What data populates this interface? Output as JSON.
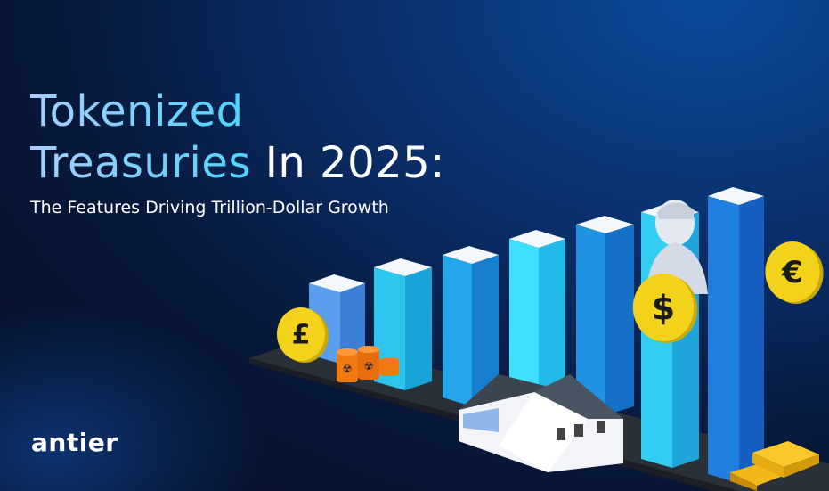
{
  "headline": {
    "line1_highlight": "Tokenized",
    "line2_highlight": "Treasuries",
    "line2_rest": " In 2025:"
  },
  "subtitle": "The Features Driving Trillion-Dollar Growth",
  "brand": {
    "logo": "antier"
  },
  "colors": {
    "background": "#07183a",
    "highlight_start": "#a9cdfb",
    "highlight_end": "#4fd4ff",
    "bar_blue": "#1f86e0",
    "bar_cyan": "#2fd0f5",
    "coin_gold": "#f2d21a"
  },
  "illustration": {
    "coins": [
      {
        "symbol": "£",
        "icon": "pound-coin-icon"
      },
      {
        "symbol": "$",
        "icon": "dollar-coin-icon"
      },
      {
        "symbol": "€",
        "icon": "euro-coin-icon"
      }
    ],
    "objects": [
      "oil-barrels-icon",
      "warehouse-icon",
      "statue-bust-icon",
      "gold-bars-icon"
    ]
  }
}
